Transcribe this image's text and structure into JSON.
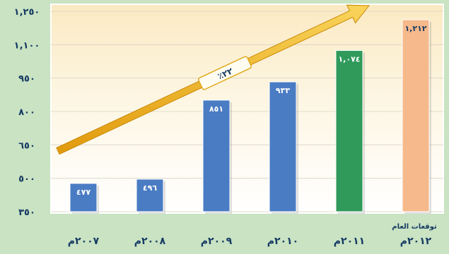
{
  "chart_data": {
    "type": "bar",
    "categories": [
      "٢٠٠٧م",
      "٢٠٠٨م",
      "٢٠٠٩م",
      "٢٠١٠م",
      "٢٠١١م",
      "٢٠١٢م"
    ],
    "values": [
      477,
      496,
      851,
      933,
      1074,
      1212
    ],
    "value_labels": [
      "٤٧٧",
      "٤٩٦",
      "٨٥١",
      "٩٣٣",
      "١,٠٧٤",
      "١,٢١٢"
    ],
    "ylim": [
      350,
      1250
    ],
    "yticks": [
      350,
      500,
      650,
      800,
      950,
      1100,
      1250
    ],
    "ytick_labels": [
      "٣٥٠",
      "٥٠٠",
      "٦٥٠",
      "٨٠٠",
      "٩٥٠",
      "١,١٠٠",
      "١,٢٥٠"
    ],
    "annotations": {
      "forecast_note": "توقعات العام",
      "growth_label": "٪٢٢"
    },
    "colors": {
      "actual": "#4a7cc4",
      "year_2011": "#2f9a5a",
      "forecast": "#f6b98b",
      "arrow": "#f2b51d"
    },
    "grid": true
  }
}
